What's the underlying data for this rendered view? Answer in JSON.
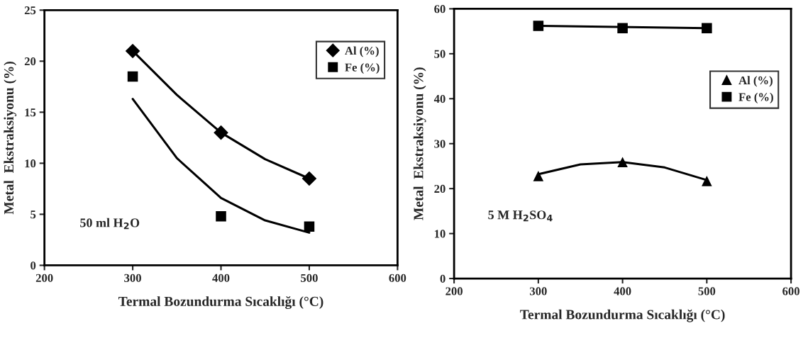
{
  "chart_data": [
    {
      "type": "scatter",
      "xlabel": "Termal Bozundurma Sıcaklığı (°C)",
      "ylabel": "Metal  Ekstraksiyonu (%)",
      "annotations": [
        "50 ml H$_{2}$O"
      ],
      "xlim": [
        200,
        600
      ],
      "xticks": [
        200,
        300,
        400,
        500,
        600
      ],
      "ylim": [
        0,
        25
      ],
      "yticks": [
        0,
        5,
        10,
        15,
        20,
        25
      ],
      "grid": false,
      "legend": "top right",
      "series": [
        {
          "name": "Al (%)",
          "color": "#000000",
          "marker": "diamond",
          "x": [
            300,
            400,
            500
          ],
          "values": [
            21.0,
            13.0,
            8.5
          ]
        },
        {
          "name": "Fe (%)",
          "color": "#000000",
          "marker": "square",
          "x": [
            300,
            400,
            500
          ],
          "values": [
            18.5,
            4.8,
            3.8
          ]
        },
        {
          "type": "line",
          "color": "#000000",
          "marker": "none",
          "x": [
            300,
            350,
            400,
            450,
            500
          ],
          "values": [
            21.0,
            16.7,
            13.0,
            10.4,
            8.5
          ]
        },
        {
          "type": "line",
          "color": "#000000",
          "marker": "none",
          "x": [
            300,
            350,
            400,
            450,
            500
          ],
          "values": [
            16.3,
            10.5,
            6.6,
            4.4,
            3.2
          ]
        }
      ]
    },
    {
      "type": "scatter",
      "xlabel": "Termal Bozundurma Sıcaklığı (°C)",
      "ylabel": "Metal  Ekstraksiyonu (%)",
      "annotations": [
        "5 M H$_{2}$SO$_{4}$"
      ],
      "xlim": [
        200,
        600
      ],
      "xticks": [
        200,
        300,
        400,
        500,
        600
      ],
      "ylim": [
        0,
        60
      ],
      "yticks": [
        0,
        10,
        20,
        30,
        40,
        50,
        60
      ],
      "grid": false,
      "legend": "right",
      "series": [
        {
          "name": "Al (%)",
          "color": "#000000",
          "marker": "triangle",
          "x": [
            300,
            400,
            500
          ],
          "values": [
            22.8,
            25.9,
            21.7
          ]
        },
        {
          "name": "Fe (%)",
          "color": "#000000",
          "marker": "square",
          "x": [
            300,
            400,
            500
          ],
          "values": [
            56.2,
            55.7,
            55.7
          ]
        },
        {
          "type": "line",
          "color": "#000000",
          "marker": "none",
          "x": [
            300,
            350,
            400,
            450,
            500
          ],
          "values": [
            23.2,
            25.4,
            25.9,
            24.7,
            21.9
          ]
        },
        {
          "type": "line",
          "color": "#000000",
          "marker": "none",
          "x": [
            300,
            500
          ],
          "values": [
            56.2,
            55.7
          ]
        }
      ]
    }
  ]
}
